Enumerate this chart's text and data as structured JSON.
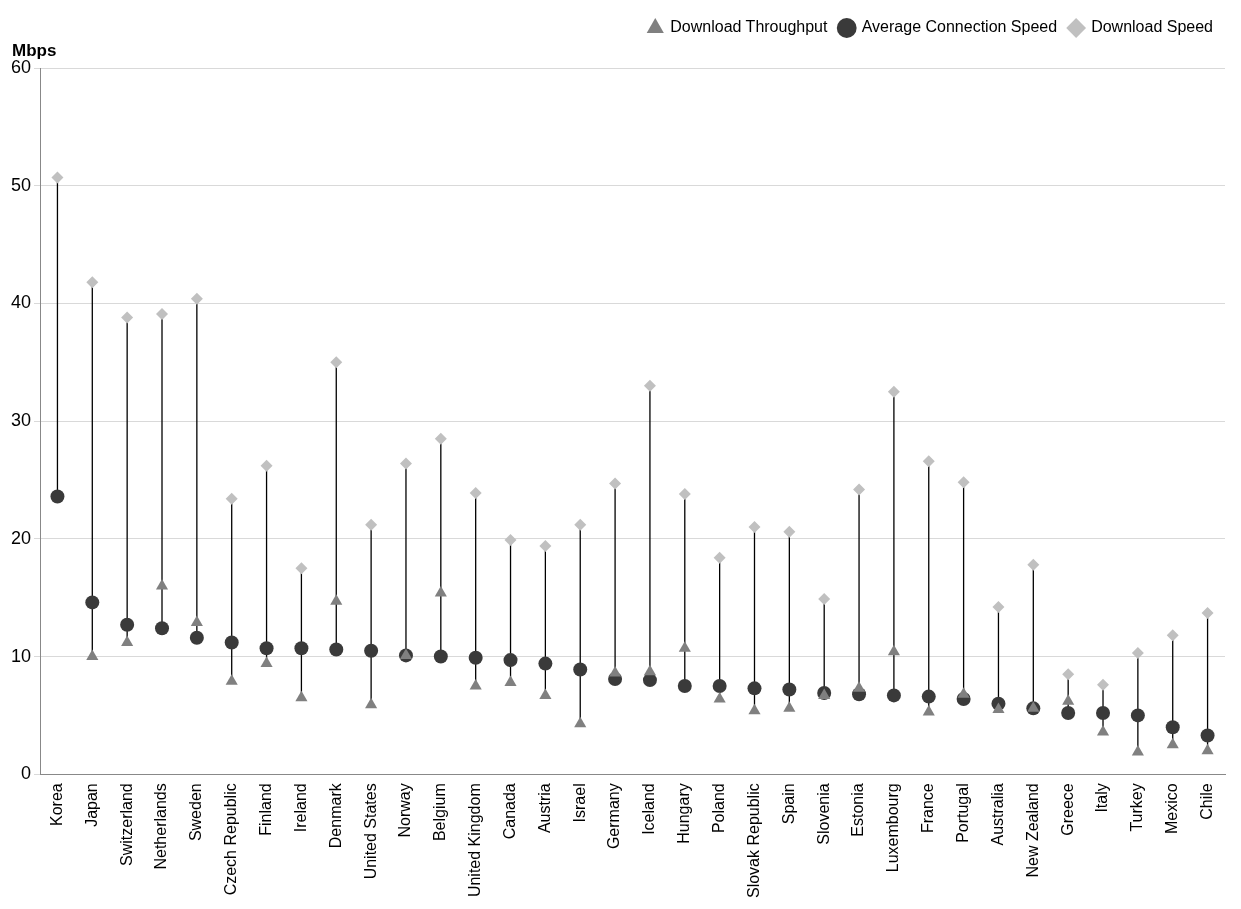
{
  "chart_data": {
    "type": "scatter",
    "ylabel": "Mbps",
    "categories": [
      "Korea",
      "Japan",
      "Switzerland",
      "Netherlands",
      "Sweden",
      "Czech Republic",
      "Finland",
      "Ireland",
      "Denmark",
      "United States",
      "Norway",
      "Belgium",
      "United Kingdom",
      "Canada",
      "Austria",
      "Israel",
      "Germany",
      "Iceland",
      "Hungary",
      "Poland",
      "Slovak Republic",
      "Spain",
      "Slovenia",
      "Estonia",
      "Luxembourg",
      "France",
      "Portugal",
      "Australia",
      "New Zealand",
      "Greece",
      "Italy",
      "Turkey",
      "Mexico",
      "Chile"
    ],
    "series": [
      {
        "name": "Average Connection Speed",
        "color": "#3a3a3a",
        "marker": "circle",
        "values": [
          23.6,
          14.6,
          12.7,
          12.4,
          11.6,
          11.2,
          10.7,
          10.7,
          10.6,
          10.5,
          10.1,
          10.0,
          9.9,
          9.7,
          9.4,
          8.9,
          8.1,
          8.0,
          7.5,
          7.5,
          7.3,
          7.2,
          6.9,
          6.8,
          6.7,
          6.6,
          6.4,
          6.0,
          5.6,
          5.2,
          5.2,
          5.0,
          4.0,
          3.3
        ]
      },
      {
        "name": "Download Throughput",
        "color": "#808080",
        "marker": "triangle",
        "values": [
          null,
          10.0,
          11.2,
          16.0,
          12.9,
          7.9,
          9.4,
          6.5,
          14.7,
          5.9,
          10.1,
          15.4,
          7.5,
          7.8,
          6.7,
          4.3,
          8.6,
          8.7,
          10.7,
          6.4,
          5.4,
          5.6,
          6.7,
          7.3,
          10.4,
          5.3,
          6.8,
          5.5,
          5.6,
          6.2,
          3.6,
          1.9,
          2.5,
          2.0
        ]
      },
      {
        "name": "Download Speed",
        "color": "#c0c0c0",
        "marker": "diamond",
        "values": [
          50.7,
          41.8,
          38.8,
          39.1,
          40.4,
          23.4,
          26.2,
          17.5,
          35.0,
          21.2,
          26.4,
          28.5,
          23.9,
          19.9,
          19.4,
          21.2,
          24.7,
          33.0,
          23.8,
          18.4,
          21.0,
          20.6,
          14.9,
          24.2,
          32.5,
          26.6,
          24.8,
          14.2,
          17.8,
          8.5,
          7.6,
          10.3,
          11.8,
          13.7
        ]
      }
    ],
    "ylim": [
      0,
      60
    ],
    "yticks": [
      0,
      10,
      20,
      30,
      40,
      50,
      60
    ],
    "grid": "y",
    "legend": "top right"
  }
}
